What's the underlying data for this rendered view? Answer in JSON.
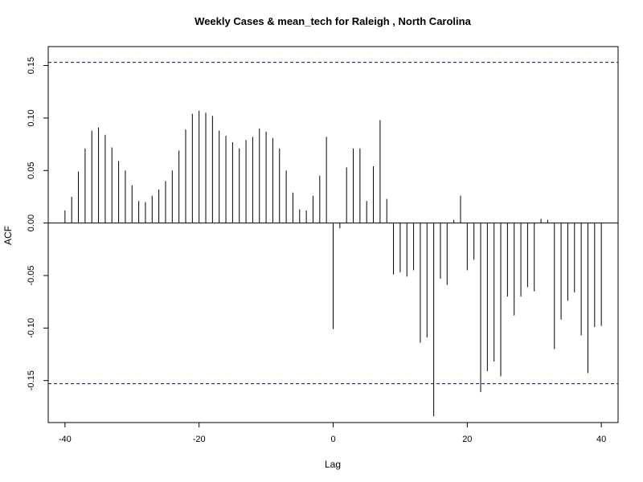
{
  "chart_data": {
    "type": "bar",
    "title": "Weekly Cases & mean_tech for Raleigh , North Carolina",
    "xlabel": "Lag",
    "ylabel": "ACF",
    "xlim": [
      -42.5,
      42.5
    ],
    "ylim": [
      -0.19,
      0.168
    ],
    "x_ticks": [
      -40,
      -20,
      0,
      20,
      40
    ],
    "x_tick_labels": [
      "-40",
      "-20",
      "0",
      "20",
      "40"
    ],
    "y_ticks": [
      -0.15,
      -0.1,
      -0.05,
      0.0,
      0.05,
      0.1,
      0.15
    ],
    "y_tick_labels": [
      "-0.15",
      "-0.10",
      "-0.05",
      "0.00",
      "0.05",
      "0.10",
      "0.15"
    ],
    "confidence_band": 0.153,
    "confidence_color": "#0000cc",
    "bar_color": "#000000",
    "zero_line": true,
    "lags": [
      -40,
      -39,
      -38,
      -37,
      -36,
      -35,
      -34,
      -33,
      -32,
      -31,
      -30,
      -29,
      -28,
      -27,
      -26,
      -25,
      -24,
      -23,
      -22,
      -21,
      -20,
      -19,
      -18,
      -17,
      -16,
      -15,
      -14,
      -13,
      -12,
      -11,
      -10,
      -9,
      -8,
      -7,
      -6,
      -5,
      -4,
      -3,
      -2,
      -1,
      0,
      1,
      2,
      3,
      4,
      5,
      6,
      7,
      8,
      9,
      10,
      11,
      12,
      13,
      14,
      15,
      16,
      17,
      18,
      19,
      20,
      21,
      22,
      23,
      24,
      25,
      26,
      27,
      28,
      29,
      30,
      31,
      32,
      33,
      34,
      35,
      36,
      37,
      38,
      39,
      40
    ],
    "values": [
      0.012,
      0.025,
      0.049,
      0.071,
      0.088,
      0.091,
      0.084,
      0.072,
      0.059,
      0.05,
      0.036,
      0.021,
      0.02,
      0.026,
      0.032,
      0.04,
      0.05,
      0.069,
      0.089,
      0.104,
      0.107,
      0.105,
      0.102,
      0.088,
      0.083,
      0.077,
      0.071,
      0.079,
      0.082,
      0.09,
      0.087,
      0.081,
      0.071,
      0.05,
      0.029,
      0.013,
      0.012,
      0.026,
      0.045,
      0.082,
      -0.101,
      -0.005,
      0.053,
      0.071,
      0.071,
      0.021,
      0.054,
      0.098,
      0.023,
      -0.049,
      -0.047,
      -0.051,
      -0.045,
      -0.114,
      -0.109,
      -0.184,
      -0.053,
      -0.059,
      0.003,
      0.026,
      -0.045,
      -0.035,
      -0.161,
      -0.141,
      -0.132,
      -0.146,
      -0.07,
      -0.088,
      -0.07,
      -0.061,
      -0.065,
      0.004,
      0.003,
      -0.12,
      -0.092,
      -0.074,
      -0.066,
      -0.107,
      -0.143,
      -0.099,
      -0.098
    ]
  }
}
